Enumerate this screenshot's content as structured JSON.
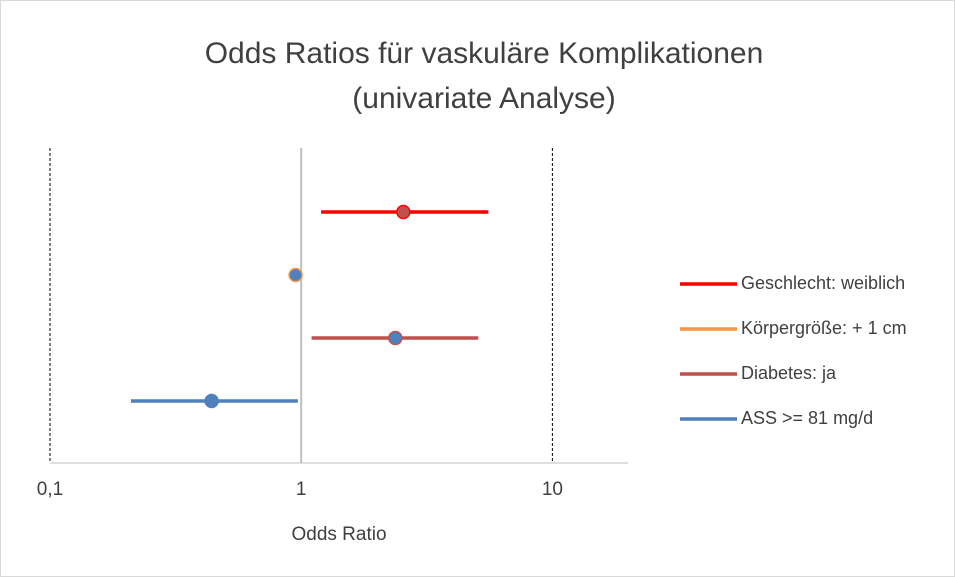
{
  "chart_data": {
    "type": "forest",
    "title": [
      "Odds Ratios für vaskuläre Komplikationen",
      "(univariate Analyse)"
    ],
    "x_label": "Odds Ratio",
    "xscale": "log",
    "xlim": [
      0.1,
      20
    ],
    "xticks": [
      {
        "value": 0.1,
        "label": "0,1"
      },
      1,
      10
    ],
    "reference": 1,
    "legend": "right",
    "series": [
      {
        "name": "Geschlecht: weiblich",
        "color": "#ff0000",
        "marker_color": "#c0504d",
        "value": 2.55,
        "lower": 1.2,
        "upper": 5.56
      },
      {
        "name": "Körpergröße: + 1 cm",
        "color": "#f79646",
        "marker_color": "#4f81bd",
        "value": 0.95,
        "lower": 0.94,
        "upper": 0.96
      },
      {
        "name": "Diabetes: ja",
        "color": "#c0504d",
        "marker_color": "#4f81bd",
        "value": 2.37,
        "lower": 1.1,
        "upper": 5.07
      },
      {
        "name": "ASS >= 81 mg/d",
        "color": "#4f81bd",
        "marker_color": "#4f81bd",
        "value": 0.44,
        "lower": 0.21,
        "upper": 0.97
      }
    ]
  }
}
